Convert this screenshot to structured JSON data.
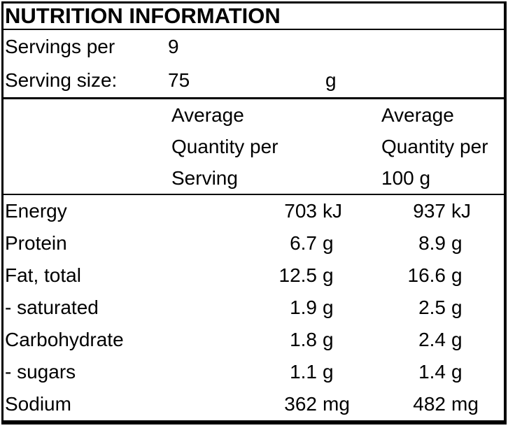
{
  "title": "NUTRITION INFORMATION",
  "serving_info": {
    "servings_per": {
      "label": "Servings per",
      "value": "9"
    },
    "serving_size": {
      "label": "Serving size:",
      "value": "75",
      "unit": "g"
    }
  },
  "column_headers": {
    "per_serving": {
      "line1": "Average",
      "line2": "Quantity per",
      "line3": "Serving"
    },
    "per_100g": {
      "line1": "Average",
      "line2": "Quantity per",
      "line3": "100 g"
    }
  },
  "rows": [
    {
      "label": "Energy",
      "serving_value": "703",
      "serving_unit": "kJ",
      "per100_value": "937",
      "per100_unit": "kJ"
    },
    {
      "label": "Protein",
      "serving_value": "6.7",
      "serving_unit": "g",
      "per100_value": "8.9",
      "per100_unit": "g"
    },
    {
      "label": "Fat, total",
      "serving_value": "12.5",
      "serving_unit": "g",
      "per100_value": "16.6",
      "per100_unit": "g"
    },
    {
      "label": "- saturated",
      "serving_value": "1.9",
      "serving_unit": "g",
      "per100_value": "2.5",
      "per100_unit": "g"
    },
    {
      "label": "Carbohydrate",
      "serving_value": "1.8",
      "serving_unit": "g",
      "per100_value": "2.4",
      "per100_unit": "g"
    },
    {
      "label": "- sugars",
      "serving_value": "1.1",
      "serving_unit": "g",
      "per100_value": "1.4",
      "per100_unit": "g"
    },
    {
      "label": "Sodium",
      "serving_value": "362",
      "serving_unit": "mg",
      "per100_value": "482",
      "per100_unit": "mg"
    }
  ],
  "colors": {
    "border": "#000000",
    "text": "#000000",
    "background": "#ffffff"
  }
}
